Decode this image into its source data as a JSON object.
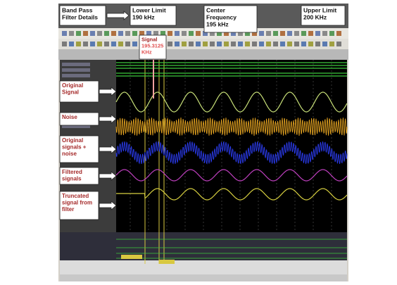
{
  "top_callouts": [
    {
      "lines": [
        "Band Pass",
        "Filter Details"
      ]
    },
    {
      "lines": [
        "Lower Limit",
        "190 kHz"
      ]
    },
    {
      "lines": [
        "Center",
        "Frequency",
        "195 kHz"
      ]
    },
    {
      "lines": [
        "Upper Limit",
        "200 KHz"
      ]
    }
  ],
  "signal_callout": {
    "lines": [
      "Signal",
      "195.3125",
      "KHz"
    ]
  },
  "row_labels": [
    {
      "lines": [
        "Original",
        "Signal"
      ]
    },
    {
      "lines": [
        "Noise"
      ]
    },
    {
      "lines": [
        "Original",
        "signals +",
        "noise"
      ]
    },
    {
      "lines": [
        "Filtered",
        "signals"
      ]
    },
    {
      "lines": [
        "Truncated",
        "signal from",
        "filter"
      ]
    }
  ]
}
